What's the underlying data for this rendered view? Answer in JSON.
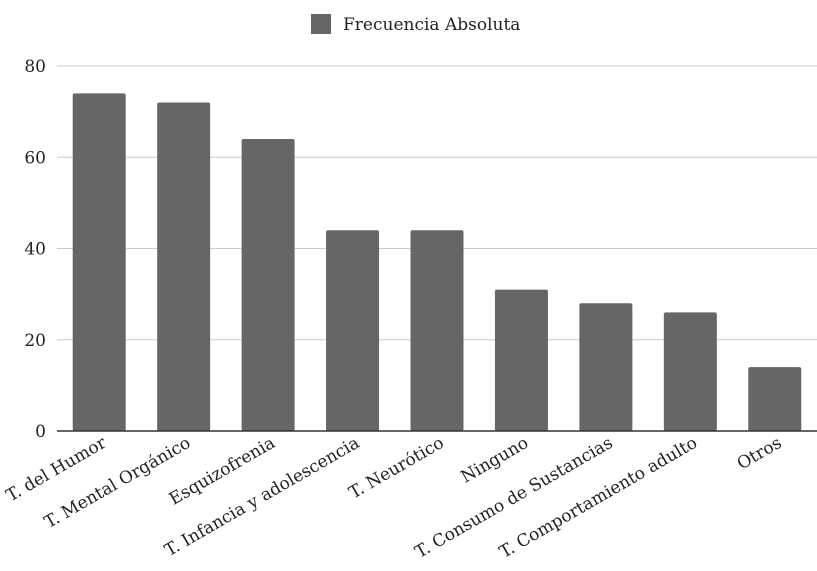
{
  "chart_data": {
    "type": "bar",
    "categories": [
      "T. del Humor",
      "T. Mental Orgánico",
      "Esquizofrenia",
      "T. Infancia y adolescencia",
      "T. Neurótico",
      "Ninguno",
      "T. Consumo de Sustancias",
      "T. Comportamiento adulto",
      "Otros"
    ],
    "series": [
      {
        "name": "Frecuencia Absoluta",
        "values": [
          74,
          72,
          64,
          44,
          44,
          31,
          28,
          26,
          14
        ]
      }
    ],
    "ylim": [
      0,
      80
    ],
    "yticks": [
      "0",
      "20",
      "40",
      "60",
      "80"
    ],
    "grid": true,
    "legend_position": "top-center",
    "bar_color": "#666666",
    "gridline_color": "#cccccc"
  }
}
